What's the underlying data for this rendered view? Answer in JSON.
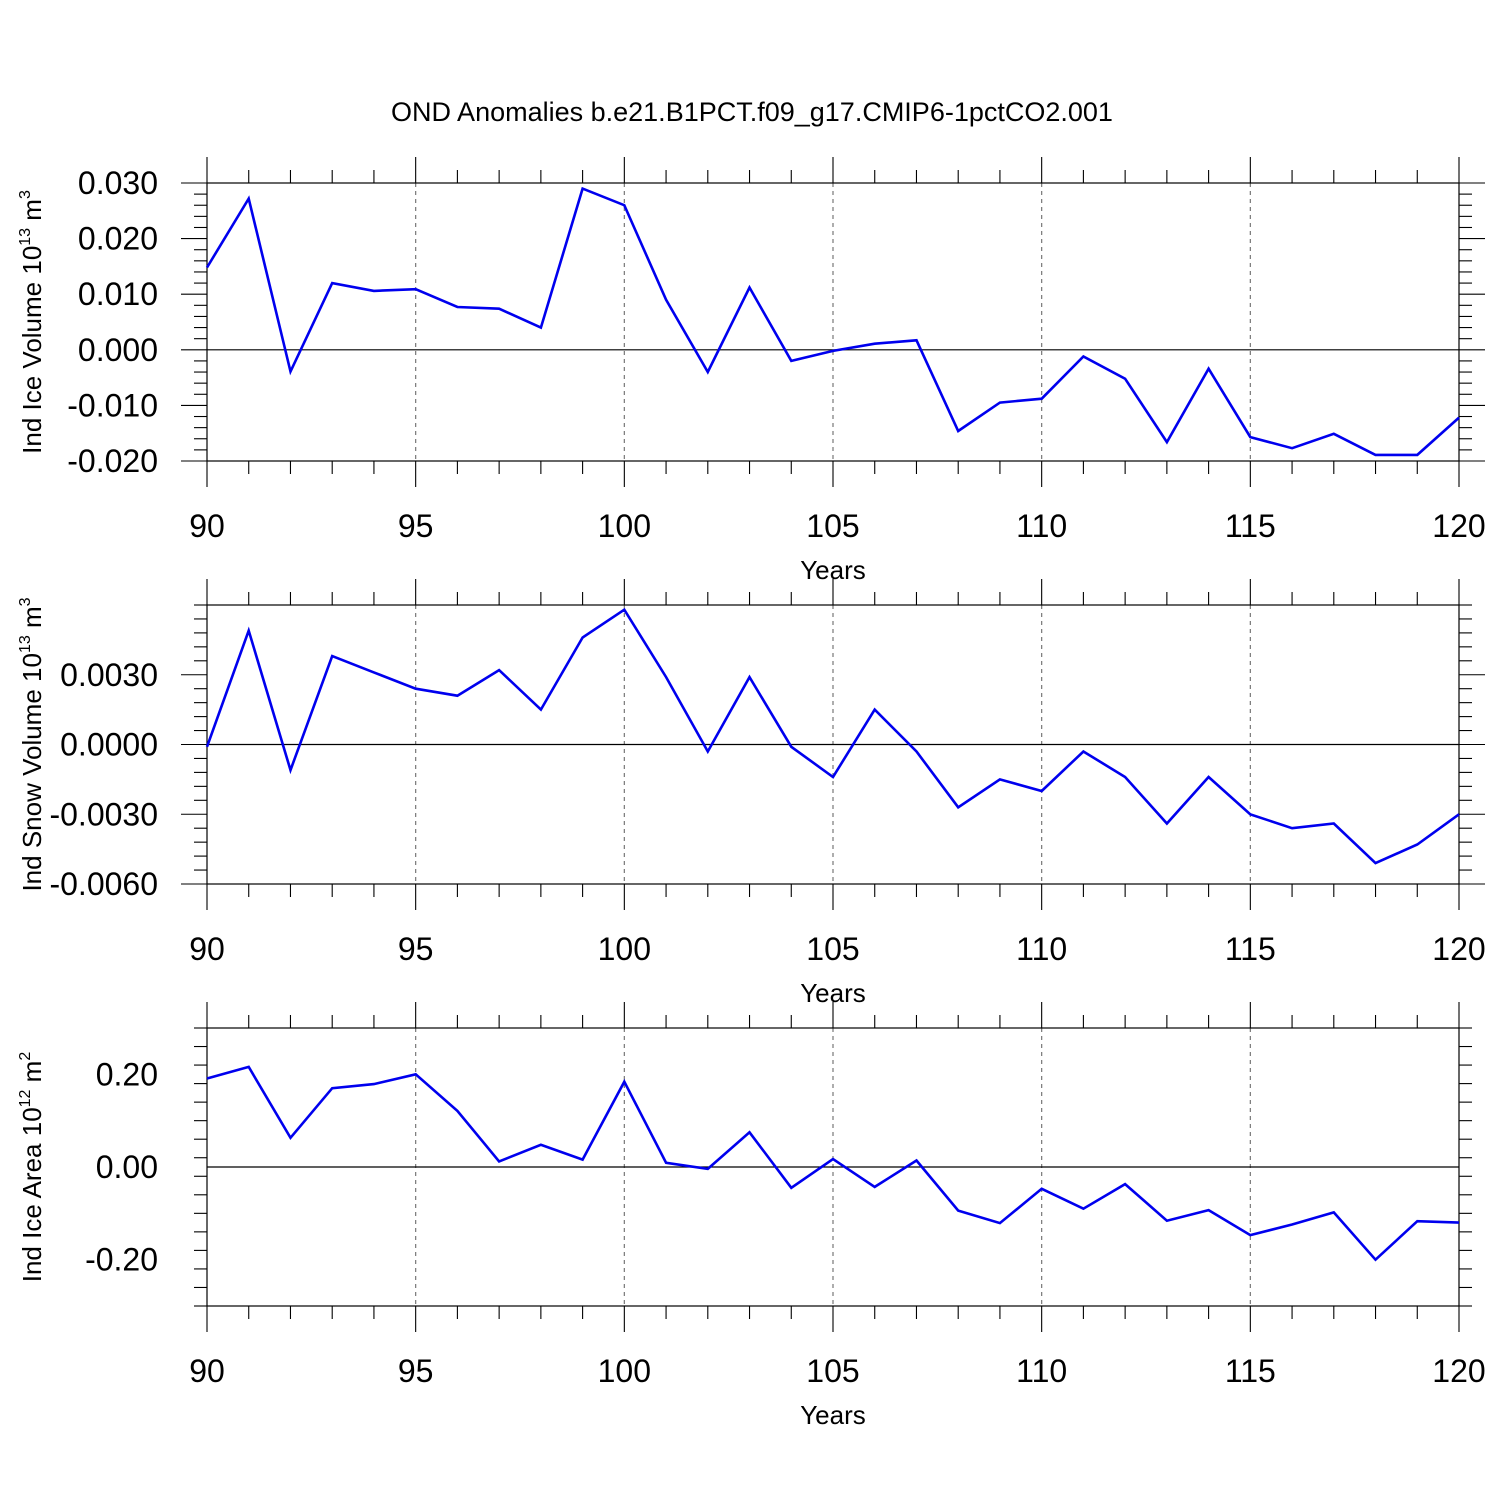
{
  "title": "OND Anomalies b.e21.B1PCT.f09_g17.CMIP6-1pctCO2.001",
  "colors": {
    "series": "#0000ee",
    "grid": "#777777",
    "axes": "#000000",
    "background": "#ffffff"
  },
  "chart_data": [
    {
      "type": "line",
      "title": "",
      "xlabel": "Years",
      "ylabel_main": "Ind Ice Volume 10",
      "ylabel_exp": "13",
      "ylabel_unit": " m",
      "ylabel_unit_exp": "3",
      "xlim": [
        90,
        120
      ],
      "ylim": [
        -0.02,
        0.03
      ],
      "xticks": [
        90,
        95,
        100,
        105,
        110,
        115,
        120
      ],
      "xtick_labels": [
        "90",
        "95",
        "100",
        "105",
        "110",
        "115",
        "120"
      ],
      "yticks": [
        -0.02,
        -0.01,
        0.0,
        0.01,
        0.02,
        0.03
      ],
      "ytick_labels": [
        "-0.020",
        "-0.010",
        "0.000",
        "0.010",
        "0.020",
        "0.030"
      ],
      "reference_line": 0.0,
      "grid": "vertical dashed at major x ticks",
      "series": [
        {
          "x": [
            90,
            91,
            92,
            93,
            94,
            95,
            96,
            97,
            98,
            99,
            100,
            101,
            102,
            103,
            104,
            105,
            106,
            107,
            108,
            109,
            110,
            111,
            112,
            113,
            114,
            115,
            116,
            117,
            118,
            119,
            120
          ],
          "values": [
            0.0148,
            0.0272,
            -0.0039,
            0.012,
            0.0106,
            0.0109,
            0.0077,
            0.0074,
            0.004,
            0.029,
            0.026,
            0.009,
            -0.004,
            0.0112,
            -0.002,
            -0.0002,
            0.0011,
            0.0017,
            -0.0146,
            -0.0095,
            -0.0088,
            -0.0012,
            -0.0052,
            -0.0166,
            -0.0034,
            -0.0157,
            -0.0177,
            -0.0151,
            -0.0189,
            -0.0189,
            -0.0122
          ]
        }
      ]
    },
    {
      "type": "line",
      "title": "",
      "xlabel": "Years",
      "ylabel_main": "Ind Snow Volume 10",
      "ylabel_exp": "13",
      "ylabel_unit": " m",
      "ylabel_unit_exp": "3",
      "xlim": [
        90,
        120
      ],
      "ylim": [
        -0.006,
        0.006
      ],
      "xticks": [
        90,
        95,
        100,
        105,
        110,
        115,
        120
      ],
      "xtick_labels": [
        "90",
        "95",
        "100",
        "105",
        "110",
        "115",
        "120"
      ],
      "yticks": [
        -0.006,
        -0.003,
        0.0,
        0.003
      ],
      "ytick_labels": [
        "-0.0060",
        "-0.0030",
        "0.0000",
        "0.0030"
      ],
      "reference_line": 0.0,
      "grid": "vertical dashed at major x ticks",
      "series": [
        {
          "x": [
            90,
            91,
            92,
            93,
            94,
            95,
            96,
            97,
            98,
            99,
            100,
            101,
            102,
            103,
            104,
            105,
            106,
            107,
            108,
            109,
            110,
            111,
            112,
            113,
            114,
            115,
            116,
            117,
            118,
            119,
            120
          ],
          "values": [
            -0.0001,
            0.0049,
            -0.0011,
            0.0038,
            0.0031,
            0.0024,
            0.0021,
            0.0032,
            0.0015,
            0.0046,
            0.0058,
            0.0029,
            -0.0003,
            0.0029,
            -0.0001,
            -0.0014,
            0.0015,
            -0.0003,
            -0.0027,
            -0.0015,
            -0.002,
            -0.0003,
            -0.0014,
            -0.0034,
            -0.0014,
            -0.003,
            -0.0036,
            -0.0034,
            -0.0051,
            -0.0043,
            -0.003
          ]
        }
      ]
    },
    {
      "type": "line",
      "title": "",
      "xlabel": "Years",
      "ylabel_main": "Ind Ice Area 10",
      "ylabel_exp": "12",
      "ylabel_unit": " m",
      "ylabel_unit_exp": "2",
      "xlim": [
        90,
        120
      ],
      "ylim": [
        -0.3,
        0.3
      ],
      "xticks": [
        90,
        95,
        100,
        105,
        110,
        115,
        120
      ],
      "xtick_labels": [
        "90",
        "95",
        "100",
        "105",
        "110",
        "115",
        "120"
      ],
      "yticks": [
        -0.2,
        0.0,
        0.2
      ],
      "ytick_labels": [
        "-0.20",
        "0.00",
        "0.20"
      ],
      "reference_line": 0.0,
      "grid": "vertical dashed at major x ticks",
      "series": [
        {
          "x": [
            90,
            91,
            92,
            93,
            94,
            95,
            96,
            97,
            98,
            99,
            100,
            101,
            102,
            103,
            104,
            105,
            106,
            107,
            108,
            109,
            110,
            111,
            112,
            113,
            114,
            115,
            116,
            117,
            118,
            119,
            120
          ],
          "values": [
            0.191,
            0.216,
            0.063,
            0.17,
            0.179,
            0.2,
            0.121,
            0.012,
            0.048,
            0.016,
            0.184,
            0.009,
            -0.004,
            0.075,
            -0.045,
            0.017,
            -0.043,
            0.014,
            -0.094,
            -0.121,
            -0.047,
            -0.09,
            -0.037,
            -0.116,
            -0.093,
            -0.147,
            -0.124,
            -0.098,
            -0.2,
            -0.117,
            -0.12
          ]
        }
      ]
    }
  ]
}
